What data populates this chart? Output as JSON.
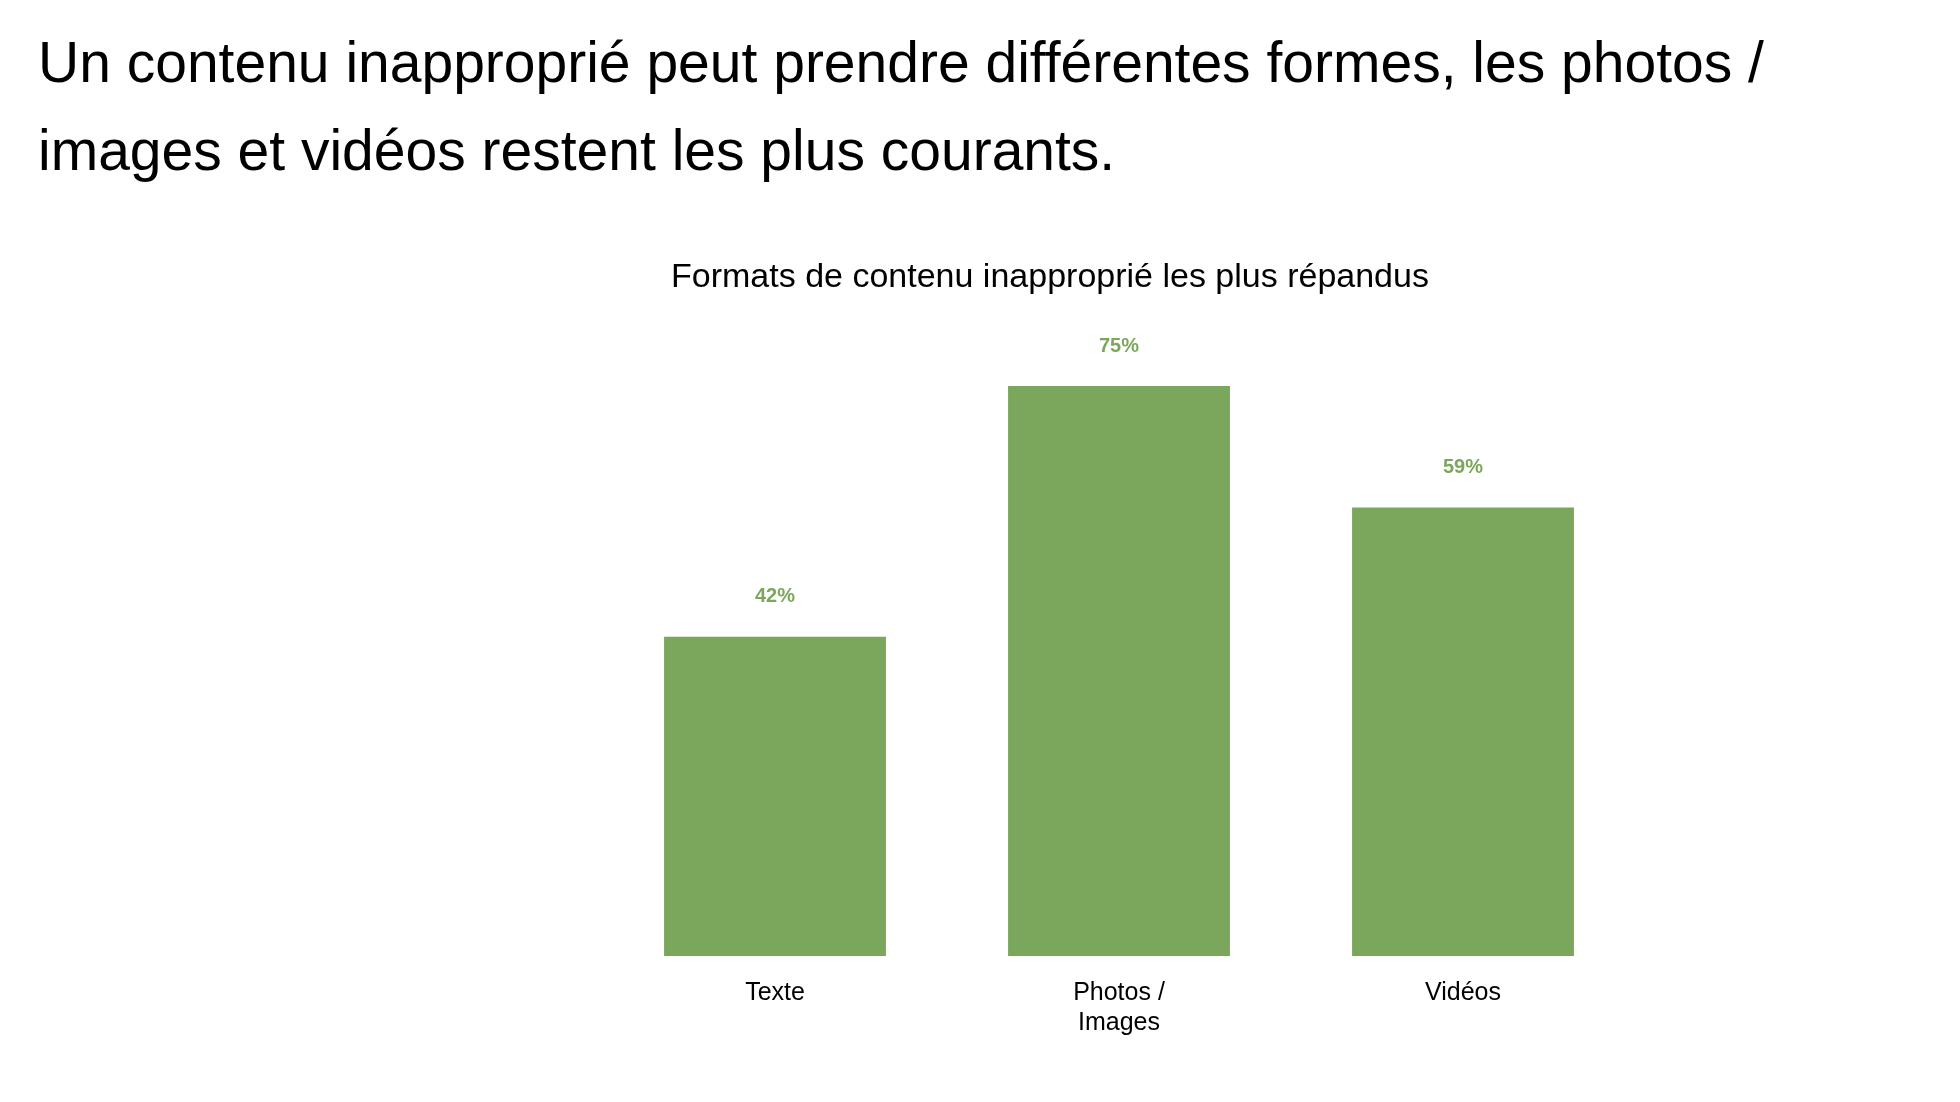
{
  "chart_data": {
    "type": "bar",
    "title": "Un contenu inapproprié peut prendre différentes formes, les photos / images et vidéos restent les plus courants.",
    "subtitle": "Formats de contenu inapproprié les plus répandus",
    "categories": [
      "Texte",
      "Photos / Images",
      "Vidéos"
    ],
    "values": [
      42,
      75,
      59
    ],
    "value_labels": [
      "42%",
      "75%",
      "59%"
    ],
    "color": "#7aa75c",
    "grid": false,
    "legend": false
  }
}
